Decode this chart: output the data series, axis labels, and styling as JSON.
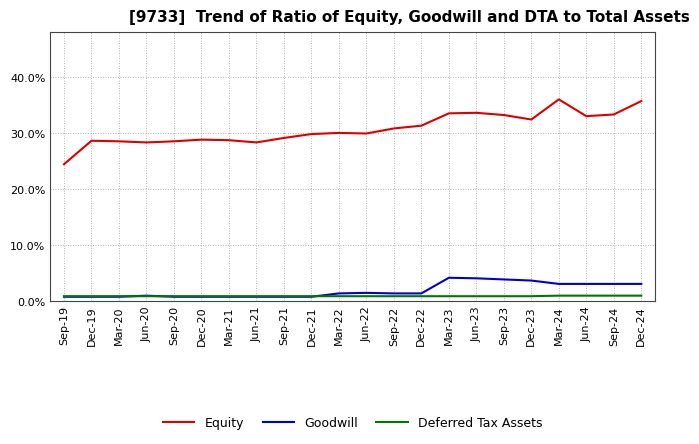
{
  "title": "[9733]  Trend of Ratio of Equity, Goodwill and DTA to Total Assets",
  "x_labels": [
    "Sep-19",
    "Dec-19",
    "Mar-20",
    "Jun-20",
    "Sep-20",
    "Dec-20",
    "Mar-21",
    "Jun-21",
    "Sep-21",
    "Dec-21",
    "Mar-22",
    "Jun-22",
    "Sep-22",
    "Dec-22",
    "Mar-23",
    "Jun-23",
    "Sep-23",
    "Dec-23",
    "Mar-24",
    "Jun-24",
    "Sep-24",
    "Dec-24"
  ],
  "equity": [
    0.244,
    0.286,
    0.285,
    0.283,
    0.285,
    0.288,
    0.287,
    0.283,
    0.291,
    0.298,
    0.3,
    0.299,
    0.308,
    0.313,
    0.335,
    0.336,
    0.332,
    0.324,
    0.36,
    0.33,
    0.333,
    0.357
  ],
  "goodwill": [
    0.007,
    0.007,
    0.007,
    0.009,
    0.007,
    0.007,
    0.007,
    0.007,
    0.007,
    0.007,
    0.013,
    0.014,
    0.013,
    0.013,
    0.041,
    0.04,
    0.038,
    0.036,
    0.03,
    0.03,
    0.03,
    0.03
  ],
  "dta": [
    0.008,
    0.008,
    0.008,
    0.008,
    0.008,
    0.008,
    0.008,
    0.008,
    0.008,
    0.008,
    0.008,
    0.008,
    0.008,
    0.008,
    0.008,
    0.008,
    0.008,
    0.008,
    0.009,
    0.009,
    0.009,
    0.009
  ],
  "equity_color": "#dd0000",
  "goodwill_color": "#0000cc",
  "dta_color": "#007700",
  "ylim": [
    0.0,
    0.48
  ],
  "yticks": [
    0.0,
    0.1,
    0.2,
    0.3,
    0.4
  ],
  "background_color": "#ffffff",
  "grid_color": "#999999",
  "title_fontsize": 11,
  "tick_fontsize": 8,
  "legend_fontsize": 9
}
